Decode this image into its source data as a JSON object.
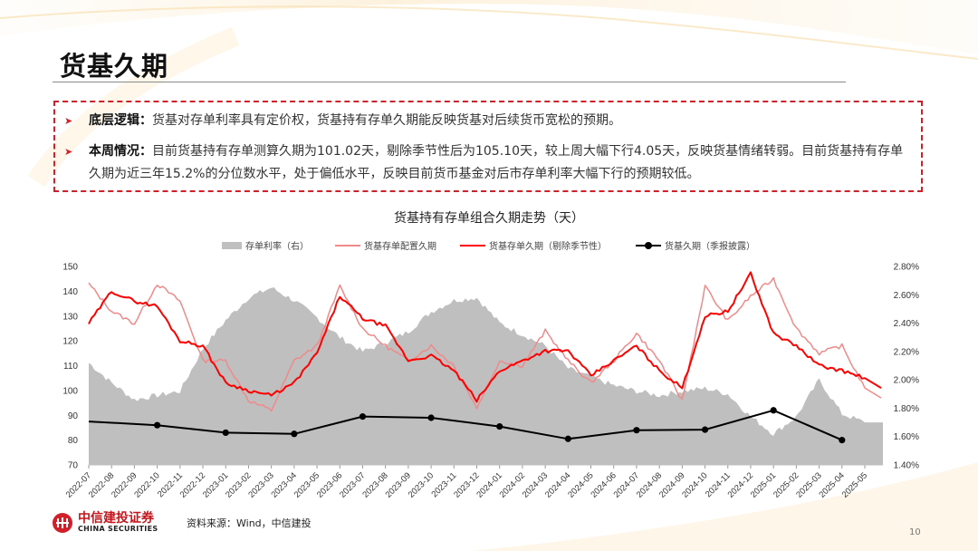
{
  "header": {
    "title": "货基久期"
  },
  "summary": {
    "bullets": [
      {
        "label": "底层逻辑：",
        "text": "货基对存单利率具有定价权，货基持有存单久期能反映货基对后续货币宽松的预期。"
      },
      {
        "label": "本周情况：",
        "text": "目前货基持有存单测算久期为101.02天，剔除季节性后为105.10天，较上周大幅下行4.05天，反映货基情绪转弱。目前货基持有存单久期为近三年15.2%的分位数水平，处于偏低水平，反映目前货币基金对后市存单利率大幅下行的预期较低。"
      }
    ]
  },
  "chart_data": {
    "type": "line",
    "title": "货基持有存单组合久期走势（天）",
    "xlabel": "",
    "ylabel": "",
    "ylim": [
      70,
      150
    ],
    "y_ticks": [
      "150",
      "140",
      "130",
      "120",
      "110",
      "100",
      "90",
      "80",
      "70"
    ],
    "y2lim": [
      1.4,
      2.8
    ],
    "y2_ticks": [
      "2.80%",
      "2.60%",
      "2.40%",
      "2.20%",
      "2.00%",
      "1.80%",
      "1.60%",
      "1.40%"
    ],
    "grid": false,
    "legend_position": "top",
    "categories": [
      "2022-07",
      "2022-08",
      "2022-09",
      "2022-10",
      "2022-11",
      "2022-12",
      "2023-01",
      "2023-02",
      "2023-03",
      "2023-04",
      "2023-05",
      "2023-06",
      "2023-07",
      "2023-08",
      "2023-09",
      "2023-10",
      "2023-11",
      "2023-12",
      "2024-01",
      "2024-02",
      "2024-03",
      "2024-04",
      "2024-05",
      "2024-06",
      "2024-07",
      "2024-08",
      "2024-09",
      "2024-10",
      "2024-11",
      "2024-12",
      "2025-01",
      "2025-02",
      "2025-03",
      "2025-04",
      "2025-05"
    ],
    "series": [
      {
        "name": "存单利率（右）",
        "type": "area",
        "axis": "right",
        "color": "#bfbfbf",
        "values": [
          2.12,
          1.98,
          1.86,
          1.89,
          1.92,
          2.22,
          2.42,
          2.58,
          2.65,
          2.56,
          2.44,
          2.3,
          2.2,
          2.26,
          2.34,
          2.48,
          2.56,
          2.58,
          2.4,
          2.32,
          2.24,
          2.08,
          2.02,
          1.96,
          1.92,
          1.89,
          1.92,
          1.94,
          1.9,
          1.74,
          1.62,
          1.74,
          2.0,
          1.76,
          1.7
        ]
      },
      {
        "name": "货基存单配置久期",
        "type": "line",
        "axis": "left",
        "color": "#f08a8a",
        "values": [
          143,
          132,
          127,
          143,
          136,
          112,
          112,
          96,
          92,
          112,
          118,
          142,
          125,
          118,
          112,
          118,
          110,
          93,
          112,
          110,
          124,
          112,
          103,
          112,
          123,
          112,
          96,
          142,
          128,
          138,
          145,
          125,
          115,
          118,
          101
        ]
      },
      {
        "name": "货基存单久期（剔除季节性）",
        "type": "line",
        "axis": "left",
        "color": "#ff0000",
        "values": [
          127,
          140,
          136,
          134,
          120,
          118,
          103,
          100,
          98,
          103,
          115,
          138,
          129,
          126,
          112,
          114,
          108,
          96,
          108,
          112,
          116,
          116,
          106,
          112,
          118,
          108,
          101,
          130,
          132,
          147,
          123,
          118,
          110,
          108,
          105
        ]
      },
      {
        "name": "货基久期（季报披露）",
        "type": "line-marker",
        "axis": "left",
        "color": "#000000",
        "x": [
          "2022-07",
          "2022-10",
          "2023-01",
          "2023-04",
          "2023-07",
          "2023-10",
          "2024-01",
          "2024-04",
          "2024-07",
          "2024-10",
          "2025-01",
          "2025-04"
        ],
        "values": [
          87.5,
          86,
          83,
          82.5,
          89.5,
          89,
          85.5,
          80.5,
          84,
          84.2,
          92,
          80
        ]
      }
    ]
  },
  "footer": {
    "logo_cn": "中信建投证券",
    "logo_en": "CHINA SECURITIES",
    "source": "资料来源：Wind，中信建投",
    "page_number": "10"
  }
}
